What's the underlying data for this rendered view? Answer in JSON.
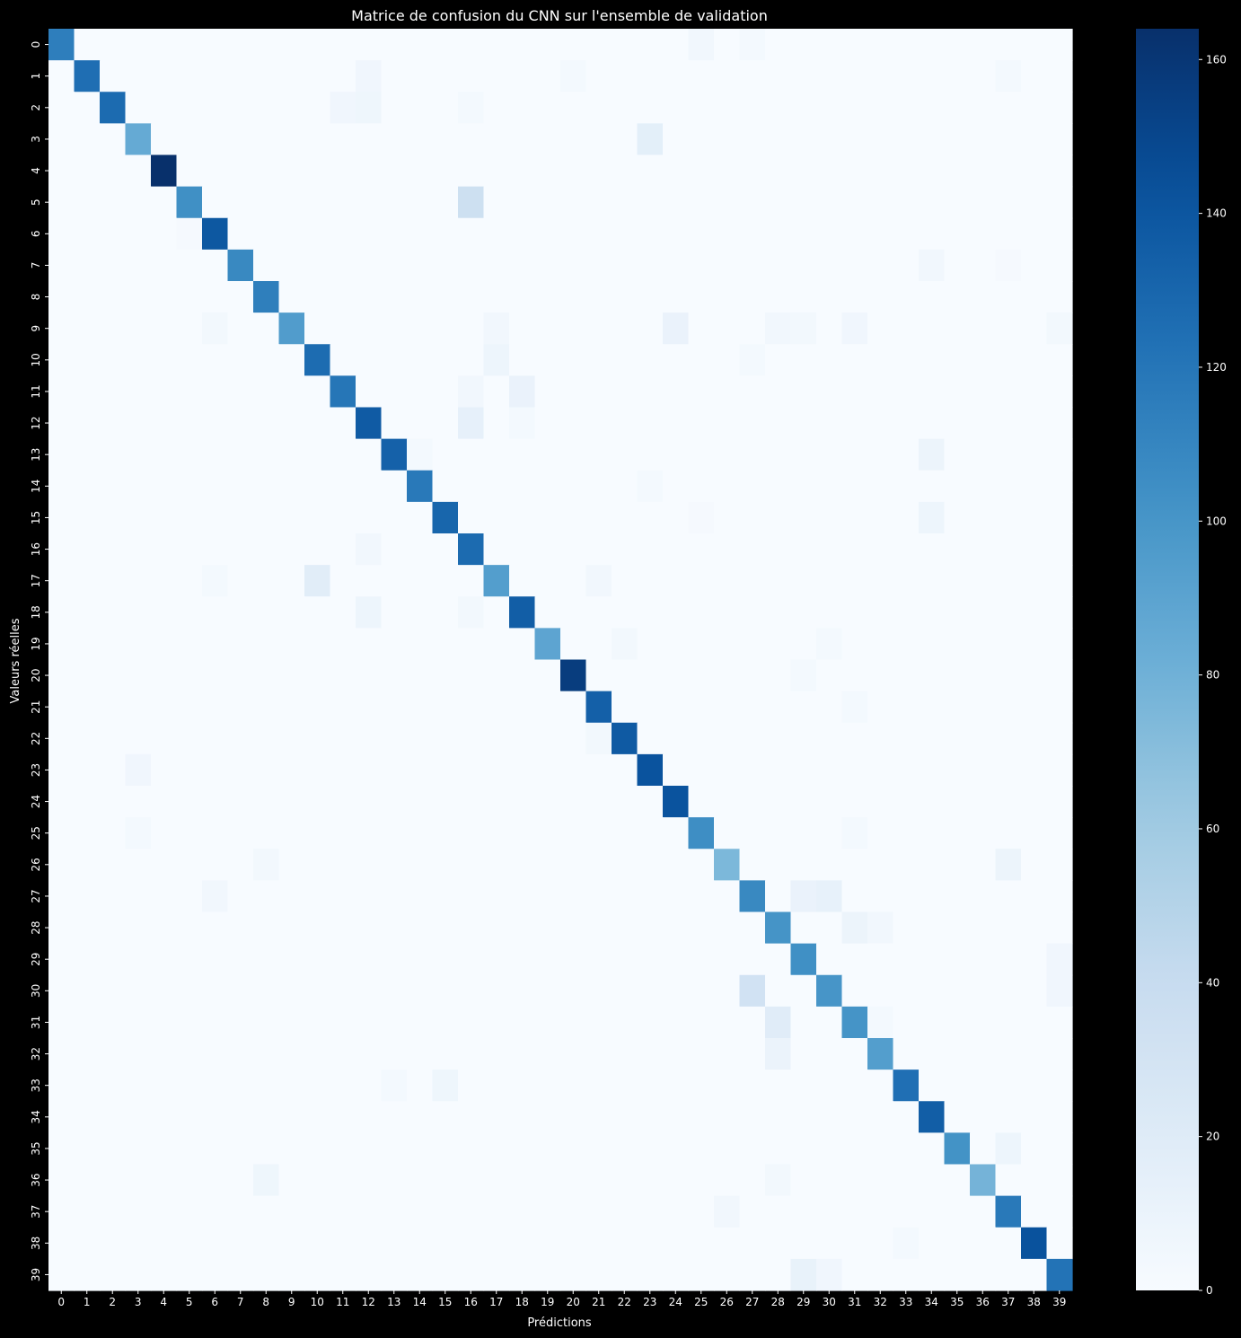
{
  "chart_data": {
    "type": "heatmap",
    "title": "Matrice de confusion du CNN sur l'ensemble de validation",
    "xlabel": "Prédictions",
    "ylabel": "Valeurs réelles",
    "x_categories": [
      "0",
      "1",
      "2",
      "3",
      "4",
      "5",
      "6",
      "7",
      "8",
      "9",
      "10",
      "11",
      "12",
      "13",
      "14",
      "15",
      "16",
      "17",
      "18",
      "19",
      "20",
      "21",
      "22",
      "23",
      "24",
      "25",
      "26",
      "27",
      "28",
      "29",
      "30",
      "31",
      "32",
      "33",
      "34",
      "35",
      "36",
      "37",
      "38",
      "39"
    ],
    "y_categories": [
      "0",
      "1",
      "2",
      "3",
      "4",
      "5",
      "6",
      "7",
      "8",
      "9",
      "10",
      "11",
      "12",
      "13",
      "14",
      "15",
      "16",
      "17",
      "18",
      "19",
      "20",
      "21",
      "22",
      "23",
      "24",
      "25",
      "26",
      "27",
      "28",
      "29",
      "30",
      "31",
      "32",
      "33",
      "34",
      "35",
      "36",
      "37",
      "38",
      "39"
    ],
    "diagonal": [
      115,
      125,
      127,
      85,
      164,
      104,
      139,
      108,
      114,
      95,
      126,
      120,
      137,
      133,
      118,
      130,
      127,
      94,
      135,
      89,
      156,
      134,
      138,
      142,
      142,
      105,
      75,
      108,
      101,
      104,
      100,
      101,
      94,
      124,
      135,
      102,
      78,
      118,
      143,
      122
    ],
    "off_diagonal": [
      {
        "row": 0,
        "col": 25,
        "value": 5
      },
      {
        "row": 0,
        "col": 27,
        "value": 3
      },
      {
        "row": 1,
        "col": 12,
        "value": 6
      },
      {
        "row": 1,
        "col": 20,
        "value": 3
      },
      {
        "row": 1,
        "col": 37,
        "value": 3
      },
      {
        "row": 2,
        "col": 11,
        "value": 6
      },
      {
        "row": 2,
        "col": 12,
        "value": 7
      },
      {
        "row": 2,
        "col": 16,
        "value": 3
      },
      {
        "row": 3,
        "col": 23,
        "value": 16
      },
      {
        "row": 5,
        "col": 16,
        "value": 35
      },
      {
        "row": 6,
        "col": 5,
        "value": 2
      },
      {
        "row": 7,
        "col": 34,
        "value": 5
      },
      {
        "row": 7,
        "col": 37,
        "value": 2
      },
      {
        "row": 9,
        "col": 6,
        "value": 4
      },
      {
        "row": 9,
        "col": 17,
        "value": 5
      },
      {
        "row": 9,
        "col": 24,
        "value": 11
      },
      {
        "row": 9,
        "col": 28,
        "value": 5
      },
      {
        "row": 9,
        "col": 29,
        "value": 4
      },
      {
        "row": 9,
        "col": 31,
        "value": 6
      },
      {
        "row": 9,
        "col": 39,
        "value": 4
      },
      {
        "row": 10,
        "col": 17,
        "value": 8
      },
      {
        "row": 10,
        "col": 27,
        "value": 3
      },
      {
        "row": 11,
        "col": 16,
        "value": 5
      },
      {
        "row": 11,
        "col": 18,
        "value": 11
      },
      {
        "row": 12,
        "col": 16,
        "value": 14
      },
      {
        "row": 12,
        "col": 18,
        "value": 3
      },
      {
        "row": 13,
        "col": 14,
        "value": 3
      },
      {
        "row": 13,
        "col": 34,
        "value": 9
      },
      {
        "row": 14,
        "col": 23,
        "value": 3
      },
      {
        "row": 15,
        "col": 34,
        "value": 8
      },
      {
        "row": 15,
        "col": 25,
        "value": 2
      },
      {
        "row": 16,
        "col": 12,
        "value": 5
      },
      {
        "row": 17,
        "col": 10,
        "value": 18
      },
      {
        "row": 17,
        "col": 21,
        "value": 5
      },
      {
        "row": 17,
        "col": 6,
        "value": 3
      },
      {
        "row": 18,
        "col": 12,
        "value": 8
      },
      {
        "row": 18,
        "col": 16,
        "value": 4
      },
      {
        "row": 19,
        "col": 22,
        "value": 4
      },
      {
        "row": 19,
        "col": 30,
        "value": 3
      },
      {
        "row": 20,
        "col": 29,
        "value": 3
      },
      {
        "row": 21,
        "col": 31,
        "value": 3
      },
      {
        "row": 22,
        "col": 21,
        "value": 4
      },
      {
        "row": 23,
        "col": 3,
        "value": 6
      },
      {
        "row": 25,
        "col": 3,
        "value": 3
      },
      {
        "row": 25,
        "col": 31,
        "value": 3
      },
      {
        "row": 26,
        "col": 8,
        "value": 4
      },
      {
        "row": 26,
        "col": 37,
        "value": 9
      },
      {
        "row": 27,
        "col": 6,
        "value": 5
      },
      {
        "row": 27,
        "col": 29,
        "value": 11
      },
      {
        "row": 27,
        "col": 30,
        "value": 13
      },
      {
        "row": 28,
        "col": 31,
        "value": 9
      },
      {
        "row": 28,
        "col": 32,
        "value": 5
      },
      {
        "row": 29,
        "col": 39,
        "value": 6
      },
      {
        "row": 30,
        "col": 27,
        "value": 32
      },
      {
        "row": 30,
        "col": 39,
        "value": 6
      },
      {
        "row": 31,
        "col": 28,
        "value": 19
      },
      {
        "row": 31,
        "col": 32,
        "value": 3
      },
      {
        "row": 32,
        "col": 28,
        "value": 10
      },
      {
        "row": 33,
        "col": 15,
        "value": 7
      },
      {
        "row": 33,
        "col": 13,
        "value": 3
      },
      {
        "row": 35,
        "col": 37,
        "value": 8
      },
      {
        "row": 36,
        "col": 8,
        "value": 7
      },
      {
        "row": 36,
        "col": 28,
        "value": 4
      },
      {
        "row": 37,
        "col": 26,
        "value": 5
      },
      {
        "row": 38,
        "col": 33,
        "value": 3
      },
      {
        "row": 39,
        "col": 29,
        "value": 12
      },
      {
        "row": 39,
        "col": 30,
        "value": 6
      }
    ],
    "colorbar": {
      "colormap": "Blues",
      "min": 0,
      "max": 164,
      "ticks": [
        0,
        20,
        40,
        60,
        80,
        100,
        120,
        140,
        160
      ]
    },
    "background_color": "#000000",
    "text_color": "#ffffff",
    "grid": false
  }
}
